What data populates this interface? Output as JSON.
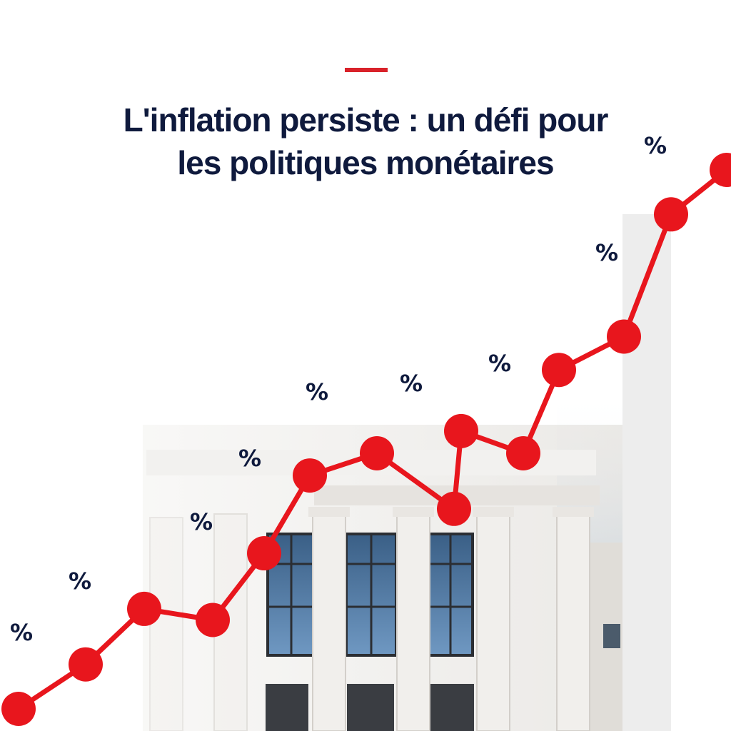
{
  "headline": {
    "line1": "L'inflation persiste : un défi pour",
    "line2": "les politiques monétaires"
  },
  "percent_symbol": "%",
  "colors": {
    "accent": "#d9222a",
    "headline": "#0f1a3d",
    "line": "#e8161d",
    "marker": "#e8161d",
    "background": "#ffffff"
  },
  "illustration": "neoclassical-building-with-columns",
  "trend_points": [
    2,
    10,
    20,
    18,
    30,
    44,
    48,
    38,
    52,
    48,
    63,
    69,
    91,
    99
  ]
}
